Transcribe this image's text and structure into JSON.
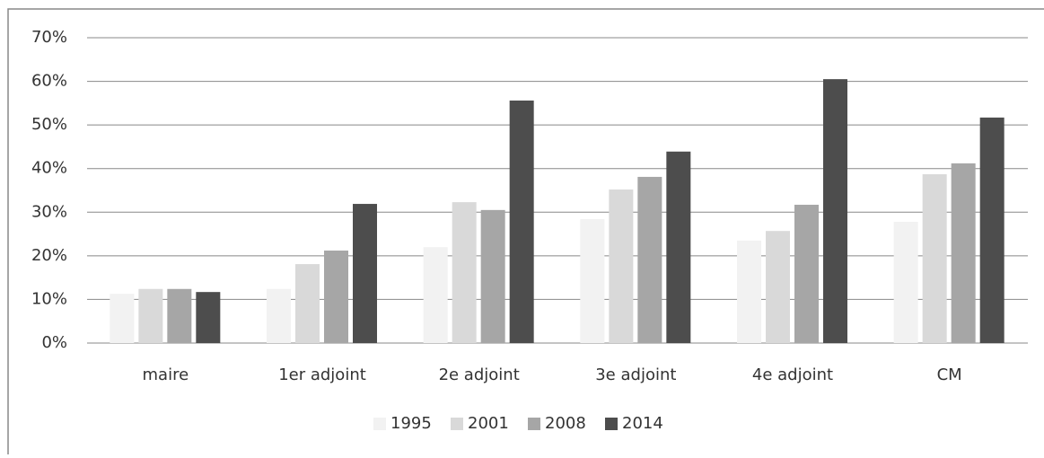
{
  "chart_data": {
    "type": "bar",
    "categories": [
      "maire",
      "1er adjoint",
      "2e adjoint",
      "3e adjoint",
      "4e adjoint",
      "CM"
    ],
    "series": [
      {
        "name": "1995",
        "color": "#f2f2f2",
        "values": [
          11.3,
          12.4,
          22.0,
          28.4,
          23.5,
          27.8
        ]
      },
      {
        "name": "2001",
        "color": "#d9d9d9",
        "values": [
          12.4,
          18.1,
          32.3,
          35.2,
          25.7,
          38.7
        ]
      },
      {
        "name": "2008",
        "color": "#a6a6a6",
        "values": [
          12.4,
          21.2,
          30.5,
          38.1,
          31.7,
          41.2
        ]
      },
      {
        "name": "2014",
        "color": "#4d4d4d",
        "values": [
          11.7,
          31.9,
          55.6,
          43.9,
          60.5,
          51.7
        ]
      }
    ],
    "ylim": [
      0,
      70
    ],
    "yticks": [
      {
        "value": 0,
        "label": "0%"
      },
      {
        "value": 10,
        "label": "10%"
      },
      {
        "value": 20,
        "label": "20%"
      },
      {
        "value": 30,
        "label": "30%"
      },
      {
        "value": 40,
        "label": "40%"
      },
      {
        "value": 50,
        "label": "50%"
      },
      {
        "value": 60,
        "label": "60%"
      },
      {
        "value": 70,
        "label": "70%"
      }
    ],
    "grid": true,
    "legend": "bottom"
  }
}
